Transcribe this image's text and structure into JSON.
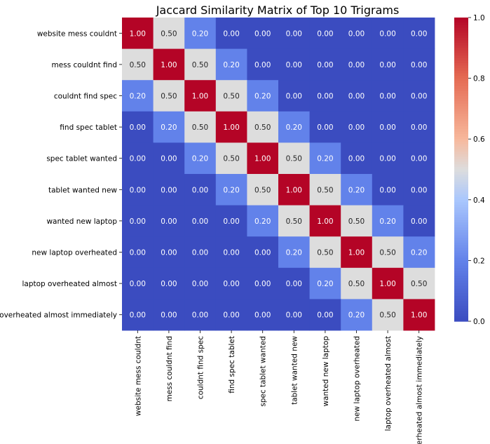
{
  "chart_data": {
    "type": "heatmap",
    "title": "Jaccard Similarity Matrix of Top 10 Trigrams",
    "xlabel": "",
    "ylabel": "",
    "labels": [
      "website mess couldnt",
      "mess couldnt find",
      "couldnt find spec",
      "find spec tablet",
      "spec tablet wanted",
      "tablet wanted new",
      "wanted new laptop",
      "new laptop overheated",
      "laptop overheated almost",
      "overheated almost immediately"
    ],
    "matrix": [
      [
        1.0,
        0.5,
        0.2,
        0.0,
        0.0,
        0.0,
        0.0,
        0.0,
        0.0,
        0.0
      ],
      [
        0.5,
        1.0,
        0.5,
        0.2,
        0.0,
        0.0,
        0.0,
        0.0,
        0.0,
        0.0
      ],
      [
        0.2,
        0.5,
        1.0,
        0.5,
        0.2,
        0.0,
        0.0,
        0.0,
        0.0,
        0.0
      ],
      [
        0.0,
        0.2,
        0.5,
        1.0,
        0.5,
        0.2,
        0.0,
        0.0,
        0.0,
        0.0
      ],
      [
        0.0,
        0.0,
        0.2,
        0.5,
        1.0,
        0.5,
        0.2,
        0.0,
        0.0,
        0.0
      ],
      [
        0.0,
        0.0,
        0.0,
        0.2,
        0.5,
        1.0,
        0.5,
        0.2,
        0.0,
        0.0
      ],
      [
        0.0,
        0.0,
        0.0,
        0.0,
        0.2,
        0.5,
        1.0,
        0.5,
        0.2,
        0.0
      ],
      [
        0.0,
        0.0,
        0.0,
        0.0,
        0.0,
        0.2,
        0.5,
        1.0,
        0.5,
        0.2
      ],
      [
        0.0,
        0.0,
        0.0,
        0.0,
        0.0,
        0.0,
        0.2,
        0.5,
        1.0,
        0.5
      ],
      [
        0.0,
        0.0,
        0.0,
        0.0,
        0.0,
        0.0,
        0.0,
        0.2,
        0.5,
        1.0
      ]
    ],
    "value_format": "2 decimals",
    "colormap": "coolwarm",
    "color_range": [
      0.0,
      1.0
    ],
    "colorbar_ticks": [
      "0.0",
      "0.2",
      "0.4",
      "0.6",
      "0.8",
      "1.0"
    ],
    "colors": {
      "low": "#3b4cc0",
      "mid": "#dddddd",
      "high": "#b40426"
    },
    "grid": false,
    "colorbar_position": "right"
  }
}
